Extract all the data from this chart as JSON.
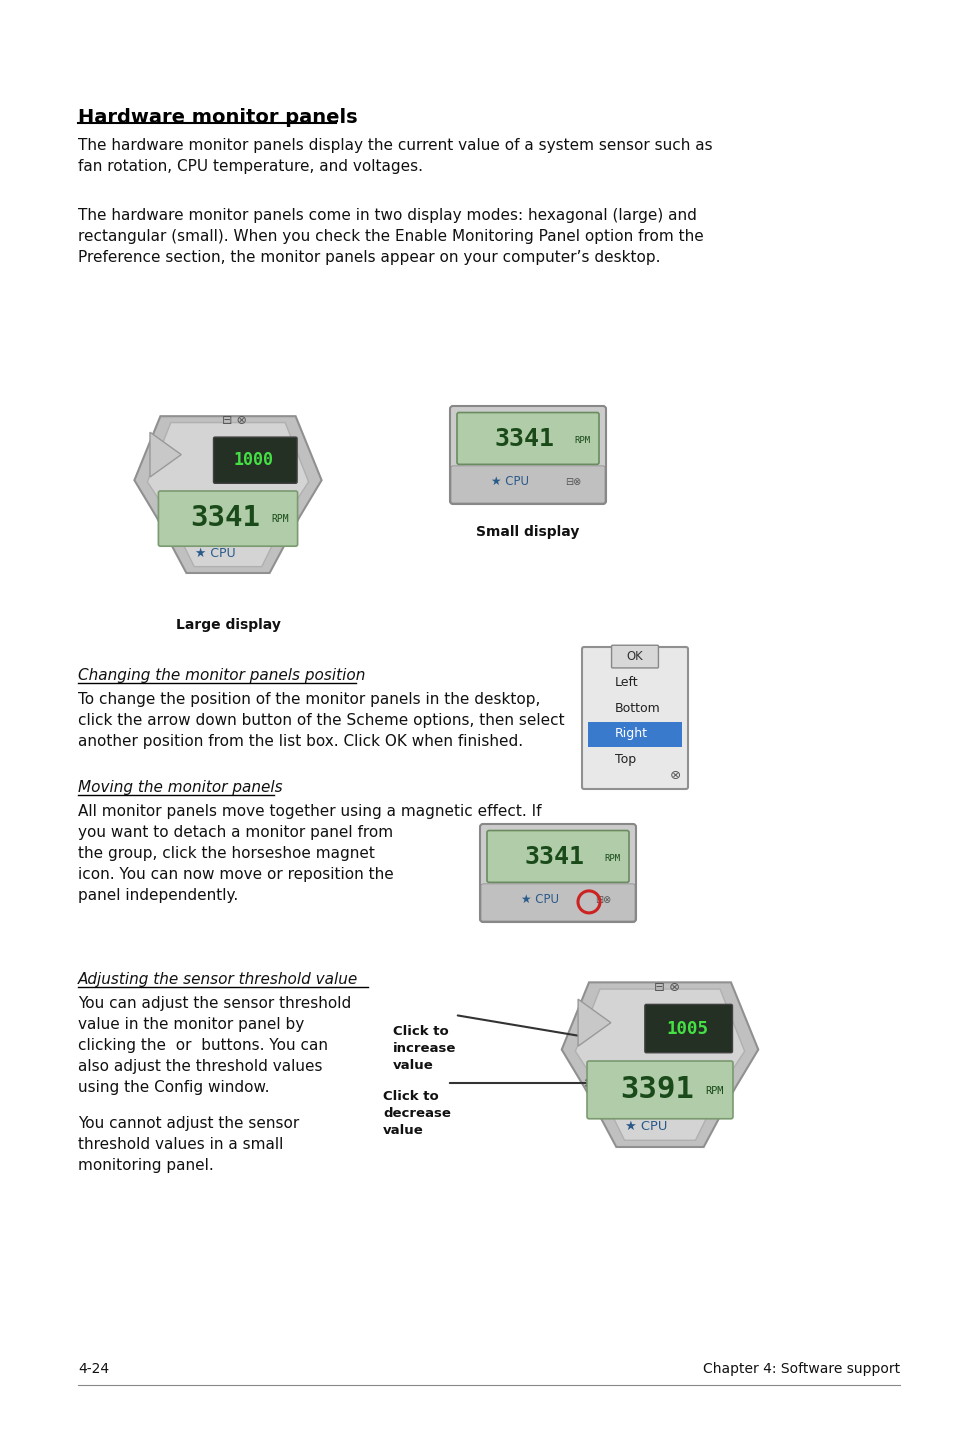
{
  "bg_color": "#ffffff",
  "title": "Hardware monitor panels",
  "footer_left": "4-24",
  "footer_right": "Chapter 4: Software support",
  "para1": "The hardware monitor panels display the current value of a system sensor such as\nfan rotation, CPU temperature, and voltages.",
  "para2": "The hardware monitor panels come in two display modes: hexagonal (large) and\nrectangular (small). When you check the Enable Monitoring Panel option from the\nPreference section, the monitor panels appear on your computer’s desktop.",
  "label_large": "Large display",
  "label_small": "Small display",
  "section1_title": "Changing the monitor panels position",
  "section1_body": "To change the position of the monitor panels in the desktop,\nclick the arrow down button of the Scheme options, then select\nanother position from the list box. Click OK when finished.",
  "section2_title": "Moving the monitor panels",
  "section2_body1": "All monitor panels move together using a magnetic effect. If\nyou want to detach a monitor panel from\nthe group, click the horseshoe magnet\nicon. You can now move or reposition the\npanel independently.",
  "section3_title": "Adjusting the sensor threshold value",
  "section3_body1": "You can adjust the sensor threshold\nvalue in the monitor panel by\nclicking the  or  buttons. You can\nalso adjust the threshold values\nusing the Config window.",
  "section3_body2": "You cannot adjust the sensor\nthreshold values in a small\nmonitoring panel.",
  "click_increase": "Click to\nincrease\nvalue",
  "click_decrease": "Click to\ndecrease\nvalue"
}
